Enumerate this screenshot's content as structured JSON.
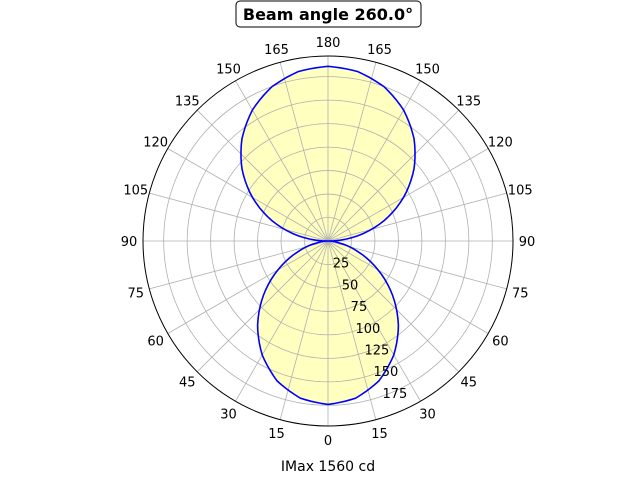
{
  "chart_data": {
    "type": "line",
    "projection": "polar",
    "title": "Beam angle 260.0°",
    "xlabel": "IMax 1560 cd",
    "theta_zero": "bottom",
    "theta_labels_mirrored": true,
    "theta_ticks": [
      0,
      15,
      30,
      45,
      60,
      75,
      90,
      105,
      120,
      135,
      150,
      165,
      180
    ],
    "r_ticks": [
      25,
      50,
      75,
      100,
      125,
      150,
      175
    ],
    "rlim": [
      0,
      197
    ],
    "grid": true,
    "series": [
      {
        "theta": [
          0,
          10,
          20,
          30,
          40,
          50,
          60,
          70,
          80,
          90,
          100,
          110,
          120,
          130,
          140,
          150,
          160,
          170,
          180
        ],
        "r": [
          174,
          170,
          158.5,
          140.2,
          116.7,
          89.7,
          61.5,
          34.8,
          12.6,
          0,
          32.3,
          63.6,
          93,
          119.6,
          142.5,
          161.1,
          174.8,
          183.2,
          186
        ],
        "mirrored": true,
        "line_color": "#0000ff",
        "fill_color": "#ffffc0"
      }
    ]
  }
}
